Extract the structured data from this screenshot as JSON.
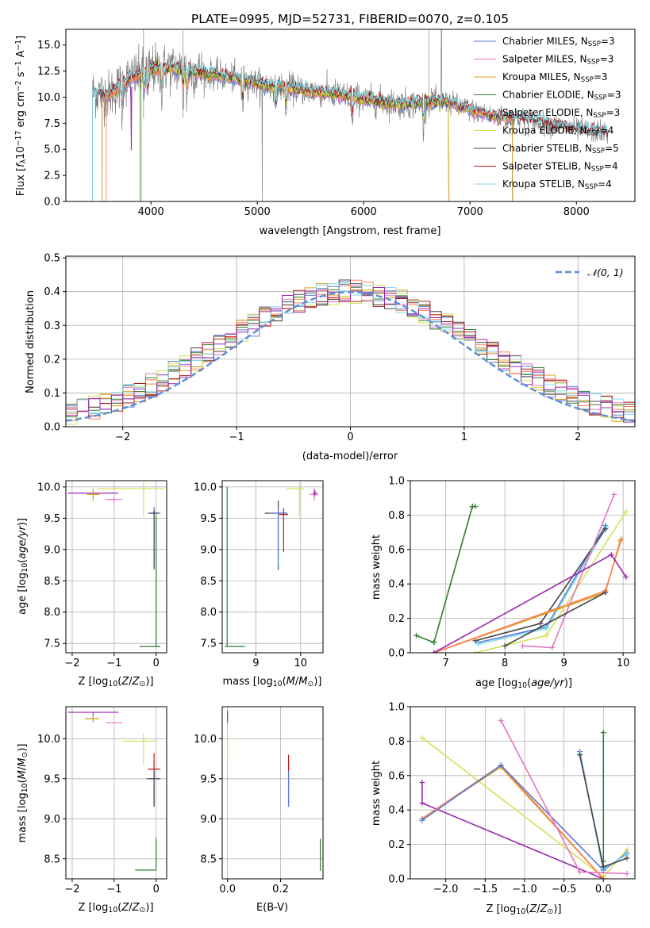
{
  "figure_title": "PLATE=0995, MJD=52731, FIBERID=0070, z=0.105",
  "colors": {
    "Chabrier MILES": "#5b7bd5",
    "Salpeter MILES": "#e377c2",
    "Kroupa MILES": "#d4a017",
    "Chabrier ELODIE": "#2e7d32",
    "Salpeter ELODIE": "#ff7f50",
    "Kroupa ELODIE": "#d4e157",
    "Chabrier STELIB": "#444444",
    "Salpeter STELIB": "#b71c1c",
    "Kroupa STELIB": "#80deea",
    "extra": "#9c27b0",
    "data": "#808080",
    "normal": "#5b8fd6"
  },
  "chart_data": [
    {
      "id": "spectrum",
      "type": "line",
      "title": "PLATE=0995, MJD=52731, FIBERID=0070, z=0.105",
      "xlabel": "wavelength [Angstrom, rest frame]",
      "ylabel": "Flux [f_λ 10^-17 erg cm^-2 s^-1 A^-1]",
      "xlim": [
        3200,
        8550
      ],
      "ylim": [
        0,
        16.5
      ],
      "xticks": [
        4000,
        5000,
        6000,
        7000,
        8000
      ],
      "yticks": [
        0.0,
        2.5,
        5.0,
        7.5,
        10.0,
        12.5,
        15.0
      ],
      "grid": false,
      "legend_position": "upper-right",
      "legend": [
        "Chabrier MILES, N_SSP=3",
        "Salpeter MILES, N_SSP=3",
        "Kroupa MILES, N_SSP=3",
        "Chabrier ELODIE, N_SSP=3",
        "Salpeter ELODIE, N_SSP=3",
        "Kroupa ELODIE, N_SSP=4",
        "Chabrier STELIB, N_SSP=5",
        "Salpeter STELIB, N_SSP=4",
        "Kroupa STELIB, N_SSP=4"
      ],
      "continuum": {
        "x": [
          3450,
          3600,
          3800,
          4000,
          4200,
          4500,
          4800,
          5000,
          5200,
          5500,
          5800,
          6000,
          6200,
          6400,
          6600,
          6800,
          7000,
          7200,
          7500,
          7800,
          8000,
          8300
        ],
        "y": [
          10.5,
          10.2,
          11.8,
          12.6,
          12.8,
          12.3,
          11.8,
          11.3,
          11.0,
          10.6,
          10.2,
          9.8,
          9.5,
          9.3,
          9.6,
          9.5,
          8.8,
          8.2,
          7.9,
          7.3,
          6.9,
          6.6
        ]
      }
    },
    {
      "id": "residuals",
      "type": "histogram",
      "xlabel": "(data-model)/error",
      "ylabel": "Normed distribution",
      "xlim": [
        -2.5,
        2.5
      ],
      "ylim": [
        0,
        0.505
      ],
      "xticks": [
        -2,
        -1,
        0,
        1,
        2
      ],
      "yticks": [
        0.0,
        0.1,
        0.2,
        0.3,
        0.4,
        0.5
      ],
      "grid": true,
      "legend_position": "upper-right",
      "legend": [
        "N(0,1)"
      ],
      "bin_width": 0.1
    },
    {
      "id": "age_vs_Z",
      "type": "scatter",
      "xlabel": "Z [log10(Z/Z⊙)]",
      "ylabel": "age [log10(age/yr)]",
      "xlim": [
        -2.15,
        0.25
      ],
      "ylim": [
        7.35,
        10.1
      ],
      "xticks": [
        -2,
        -1,
        0
      ],
      "yticks": [
        7.5,
        8.0,
        8.5,
        9.0,
        9.5,
        10.0
      ],
      "grid": true,
      "points": [
        {
          "model": "extra",
          "x": -1.5,
          "y": 9.9,
          "xerr": [
            0.6,
            0.6
          ],
          "yerr": [
            0,
            0
          ]
        },
        {
          "model": "Kroupa MILES",
          "x": -1.5,
          "y": 9.88,
          "xerr": [
            0.15,
            0.15
          ],
          "yerr": [
            0.1,
            0.1
          ]
        },
        {
          "model": "Salpeter MILES",
          "x": -1.0,
          "y": 9.8,
          "xerr": [
            0.2,
            0.2
          ],
          "yerr": [
            0.05,
            0.05
          ]
        },
        {
          "model": "Kroupa ELODIE",
          "x": -0.3,
          "y": 9.97,
          "xerr": [
            1.1,
            0.5
          ],
          "yerr": [
            0.45,
            0.1
          ]
        },
        {
          "model": "Chabrier MILES",
          "x": -0.05,
          "y": 9.58,
          "xerr": [
            0.15,
            0.15
          ],
          "yerr": [
            0.85,
            0.1
          ]
        },
        {
          "model": "Chabrier STELIB",
          "x": -0.05,
          "y": 9.58,
          "xerr": [
            0.1,
            0.1
          ],
          "yerr": [
            0.9,
            0.05
          ]
        },
        {
          "model": "Chabrier ELODIE",
          "x": 0.0,
          "y": 7.45,
          "xerr": [
            0.4,
            0.1
          ],
          "yerr": [
            0,
            2.1
          ]
        }
      ]
    },
    {
      "id": "age_vs_mass",
      "type": "scatter",
      "xlabel": "mass [log10(M/M⊙)]",
      "ylabel": "",
      "xlim": [
        8.25,
        10.5
      ],
      "ylim": [
        7.35,
        10.1
      ],
      "xticks": [
        9,
        10
      ],
      "yticks": [
        7.5,
        8.0,
        8.5,
        9.0,
        9.5,
        10.0
      ],
      "grid": true,
      "points": [
        {
          "model": "Chabrier ELODIE",
          "x": 8.36,
          "y": 7.45,
          "xerr": [
            0.05,
            0.4
          ],
          "yerr": [
            0,
            2.55
          ]
        },
        {
          "model": "Chabrier STELIB",
          "x": 9.5,
          "y": 9.58,
          "xerr": [
            0.3,
            0.2
          ],
          "yerr": [
            0.9,
            0.2
          ]
        },
        {
          "model": "Chabrier MILES",
          "x": 9.5,
          "y": 9.58,
          "xerr": [
            0.2,
            0.2
          ],
          "yerr": [
            0.85,
            0.1
          ]
        },
        {
          "model": "Salpeter STELIB",
          "x": 9.62,
          "y": 9.56,
          "xerr": [
            0.1,
            0.1
          ],
          "yerr": [
            0.6,
            0.1
          ]
        },
        {
          "model": "Kroupa ELODIE",
          "x": 9.97,
          "y": 9.97,
          "xerr": [
            0.3,
            0.1
          ],
          "yerr": [
            0.45,
            0.1
          ]
        },
        {
          "model": "Salpeter MILES",
          "x": 10.3,
          "y": 9.88,
          "xerr": [
            0.1,
            0.1
          ],
          "yerr": [
            0.1,
            0.1
          ]
        },
        {
          "model": "extra",
          "x": 10.32,
          "y": 9.9,
          "xerr": [
            0.05,
            0.05
          ],
          "yerr": [
            0.05,
            0.05
          ]
        }
      ]
    },
    {
      "id": "massweight_vs_age",
      "type": "line",
      "xlabel": "age [log10(age/yr)]",
      "ylabel": "mass weight",
      "xlim": [
        6.4,
        10.2
      ],
      "ylim": [
        0,
        1.0
      ],
      "xticks": [
        7,
        8,
        9,
        10
      ],
      "yticks": [
        0.0,
        0.2,
        0.4,
        0.6,
        0.8,
        1.0
      ],
      "grid": true,
      "series": [
        {
          "model": "Chabrier ELODIE",
          "x": [
            6.5,
            6.8
          ],
          "y": [
            0.1,
            0.06
          ]
        },
        {
          "model": "Chabrier ELODIE",
          "x": [
            7.5,
            7.45
          ],
          "y": [
            0.85,
            0.85
          ]
        },
        {
          "model": "Chabrier ELODIE",
          "x": [
            6.8,
            7.45
          ],
          "y": [
            0.06,
            0.85
          ]
        },
        {
          "model": "Chabrier MILES",
          "x": [
            7.55,
            8.7,
            9.7
          ],
          "y": [
            0.06,
            0.15,
            0.74
          ]
        },
        {
          "model": "Kroupa STELIB",
          "x": [
            7.55,
            8.7,
            9.72
          ],
          "y": [
            0.05,
            0.14,
            0.73
          ]
        },
        {
          "model": "Chabrier STELIB",
          "x": [
            7.5,
            8.6,
            9.7
          ],
          "y": [
            0.07,
            0.17,
            0.72
          ]
        },
        {
          "model": "Kroupa MILES",
          "x": [
            6.8,
            9.7,
            9.95
          ],
          "y": [
            0.0,
            0.35,
            0.65
          ]
        },
        {
          "model": "Salpeter ELODIE",
          "x": [
            6.8,
            9.7,
            9.97
          ],
          "y": [
            0.0,
            0.36,
            0.66
          ]
        },
        {
          "model": "Kroupa ELODIE",
          "x": [
            7.5,
            8.7,
            10.05
          ],
          "y": [
            0.0,
            0.1,
            0.82
          ]
        },
        {
          "model": "Salpeter MILES",
          "x": [
            8.3,
            8.8,
            9.85
          ],
          "y": [
            0.04,
            0.03,
            0.92
          ]
        },
        {
          "model": "Chabrier STELIB",
          "x": [
            8.0,
            9.7
          ],
          "y": [
            0.04,
            0.35
          ]
        },
        {
          "model": "extra",
          "x": [
            6.8,
            9.8,
            10.05
          ],
          "y": [
            0.0,
            0.57,
            0.44
          ]
        }
      ]
    },
    {
      "id": "mass_vs_Z",
      "type": "scatter",
      "xlabel": "Z [log10(Z/Z⊙)]",
      "ylabel": "mass [log10(M/M⊙)]",
      "xlim": [
        -2.15,
        0.25
      ],
      "ylim": [
        8.25,
        10.4
      ],
      "xticks": [
        -2,
        -1,
        0
      ],
      "yticks": [
        8.5,
        9.0,
        9.5,
        10.0
      ],
      "grid": true,
      "points": [
        {
          "model": "extra",
          "x": -1.5,
          "y": 10.33,
          "xerr": [
            0.6,
            0.6
          ],
          "yerr": [
            0.1,
            0
          ]
        },
        {
          "model": "Kroupa MILES",
          "x": -1.5,
          "y": 10.25,
          "xerr": [
            0.2,
            0.15
          ],
          "yerr": [
            0.05,
            0.05
          ]
        },
        {
          "model": "Salpeter MILES",
          "x": -1.0,
          "y": 10.2,
          "xerr": [
            0.2,
            0.2
          ],
          "yerr": [
            0,
            0
          ]
        },
        {
          "model": "Kroupa ELODIE",
          "x": -0.3,
          "y": 9.97,
          "xerr": [
            0.5,
            0.3
          ],
          "yerr": [
            0.3,
            0.1
          ]
        },
        {
          "model": "Salpeter STELIB",
          "x": -0.05,
          "y": 9.62,
          "xerr": [
            0.15,
            0.15
          ],
          "yerr": [
            0.1,
            0.2
          ]
        },
        {
          "model": "Chabrier MILES",
          "x": -0.05,
          "y": 9.5,
          "xerr": [
            0.2,
            0.15
          ],
          "yerr": [
            0.35,
            0.1
          ]
        },
        {
          "model": "Chabrier STELIB",
          "x": -0.05,
          "y": 9.5,
          "xerr": [
            0.15,
            0.15
          ],
          "yerr": [
            0.35,
            0.1
          ]
        },
        {
          "model": "Chabrier ELODIE",
          "x": 0.0,
          "y": 8.36,
          "xerr": [
            0.5,
            0
          ],
          "yerr": [
            0,
            0.4
          ]
        }
      ]
    },
    {
      "id": "mass_vs_ebv",
      "type": "scatter",
      "xlabel": "E(B-V)",
      "ylabel": "",
      "xlim": [
        -0.02,
        0.36
      ],
      "ylim": [
        8.25,
        10.4
      ],
      "xticks": [
        0.0,
        0.2
      ],
      "yticks": [
        8.5,
        9.0,
        9.5,
        10.0
      ],
      "grid": true,
      "points": [
        {
          "model": "extra",
          "x": 0.0,
          "y": 10.3,
          "xerr": [
            0,
            0
          ],
          "yerr": [
            0.1,
            0.05
          ]
        },
        {
          "model": "Kroupa ELODIE",
          "x": 0.0,
          "y": 10.0,
          "xerr": [
            0,
            0
          ],
          "yerr": [
            0.3,
            0.1
          ]
        },
        {
          "model": "Salpeter STELIB",
          "x": 0.23,
          "y": 9.5,
          "xerr": [
            0,
            0
          ],
          "yerr": [
            0.35,
            0.3
          ]
        },
        {
          "model": "Chabrier MILES",
          "x": 0.23,
          "y": 9.5,
          "xerr": [
            0,
            0
          ],
          "yerr": [
            0.35,
            0.1
          ]
        },
        {
          "model": "Chabrier ELODIE",
          "x": 0.35,
          "y": 8.55,
          "xerr": [
            0,
            0
          ],
          "yerr": [
            0.2,
            0.2
          ]
        }
      ]
    },
    {
      "id": "massweight_vs_Z",
      "type": "line",
      "xlabel": "Z [log10(Z/Z⊙)]",
      "ylabel": "mass weight",
      "xlim": [
        -2.45,
        0.4
      ],
      "ylim": [
        0,
        1.0
      ],
      "xticks": [
        -2.0,
        -1.5,
        -1.0,
        -0.5,
        0.0
      ],
      "yticks": [
        0.0,
        0.2,
        0.4,
        0.6,
        0.8,
        1.0
      ],
      "grid": true,
      "series": [
        {
          "model": "Kroupa ELODIE",
          "x": [
            -2.3,
            0.0,
            0.3
          ],
          "y": [
            0.82,
            0.01,
            0.17
          ]
        },
        {
          "model": "extra",
          "x": [
            -2.3,
            -2.3,
            0.0
          ],
          "y": [
            0.56,
            0.44,
            0.0
          ]
        },
        {
          "model": "Kroupa MILES",
          "x": [
            -2.3,
            -1.3,
            0.0
          ],
          "y": [
            0.35,
            0.65,
            0.0
          ]
        },
        {
          "model": "Salpeter ELODIE",
          "x": [
            -2.3,
            -1.3,
            0.0
          ],
          "y": [
            0.35,
            0.66,
            0.0
          ]
        },
        {
          "model": "Chabrier MILES",
          "x": [
            -2.3,
            -1.3,
            0.0
          ],
          "y": [
            0.34,
            0.66,
            0.05
          ]
        },
        {
          "model": "Salpeter MILES",
          "x": [
            -1.3,
            -0.3,
            0.3
          ],
          "y": [
            0.92,
            0.04,
            0.03
          ]
        },
        {
          "model": "Chabrier MILES",
          "x": [
            -0.3,
            0.0,
            0.3
          ],
          "y": [
            0.74,
            0.05,
            0.15
          ]
        },
        {
          "model": "Kroupa STELIB",
          "x": [
            -0.3,
            0.0,
            0.3
          ],
          "y": [
            0.73,
            0.06,
            0.14
          ]
        },
        {
          "model": "Chabrier STELIB",
          "x": [
            -0.3,
            0.0,
            0.3
          ],
          "y": [
            0.72,
            0.07,
            0.12
          ]
        },
        {
          "model": "Chabrier ELODIE",
          "x": [
            0.0,
            0.0
          ],
          "y": [
            0.85,
            0.1
          ]
        }
      ]
    }
  ]
}
